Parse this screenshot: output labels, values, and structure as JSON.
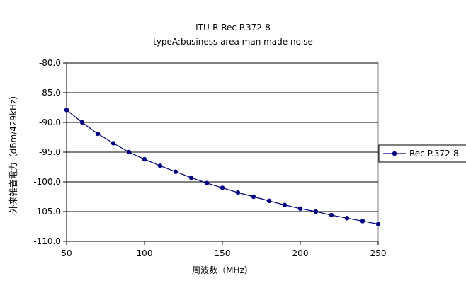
{
  "chart_data": {
    "type": "line",
    "title": "ITU-R Rec P.372-8",
    "subtitle": "typeA:business area man made noise",
    "xlabel": "周波数（MHz）",
    "ylabel": "外来雑音電力（dBm/429kHz）",
    "xlim": [
      50,
      250
    ],
    "ylim": [
      -110,
      -80
    ],
    "xticks": [
      50,
      100,
      150,
      200,
      250
    ],
    "yticks": [
      -110,
      -105,
      -100,
      -95,
      -90,
      -85,
      -80
    ],
    "xtick_labels": [
      "50",
      "100",
      "150",
      "200",
      "250"
    ],
    "ytick_labels": [
      "-110.0",
      "-105.0",
      "-100.0",
      "-95.0",
      "-90.0",
      "-85.0",
      "-80.0"
    ],
    "grid": "horizontal major gridlines",
    "legend_position": "right",
    "series": [
      {
        "name": "Rec P.372-8",
        "color": "#000080",
        "marker": "circle",
        "x": [
          50,
          60,
          70,
          80,
          90,
          100,
          110,
          120,
          130,
          140,
          150,
          160,
          170,
          180,
          190,
          200,
          210,
          220,
          230,
          240,
          250
        ],
        "y": [
          -87.9,
          -90.0,
          -91.9,
          -93.5,
          -95.0,
          -96.2,
          -97.3,
          -98.3,
          -99.3,
          -100.2,
          -101.0,
          -101.8,
          -102.5,
          -103.2,
          -103.9,
          -104.5,
          -105.0,
          -105.6,
          -106.1,
          -106.6,
          -107.1
        ]
      }
    ]
  }
}
